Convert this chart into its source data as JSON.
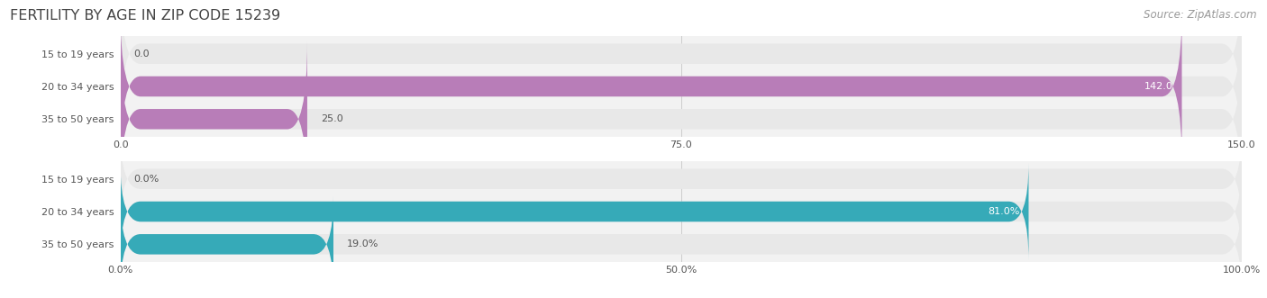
{
  "title": "FERTILITY BY AGE IN ZIP CODE 15239",
  "source": "Source: ZipAtlas.com",
  "top_chart": {
    "categories": [
      "15 to 19 years",
      "20 to 34 years",
      "35 to 50 years"
    ],
    "values": [
      0.0,
      142.0,
      25.0
    ],
    "max_value": 150.0,
    "tick_values": [
      0.0,
      75.0,
      150.0
    ],
    "tick_labels": [
      "0.0",
      "75.0",
      "150.0"
    ],
    "bar_color": "#b87db8",
    "bar_bg_color": "#e8e8e8"
  },
  "bottom_chart": {
    "categories": [
      "15 to 19 years",
      "20 to 34 years",
      "35 to 50 years"
    ],
    "values": [
      0.0,
      81.0,
      19.0
    ],
    "max_value": 100.0,
    "tick_values": [
      0.0,
      50.0,
      100.0
    ],
    "tick_labels": [
      "0.0%",
      "50.0%",
      "100.0%"
    ],
    "bar_color": "#36aab8",
    "bar_bg_color": "#e8e8e8"
  },
  "title_color": "#444444",
  "title_fontsize": 11.5,
  "source_color": "#999999",
  "source_fontsize": 8.5,
  "label_fontsize": 8,
  "tick_fontsize": 8,
  "category_fontsize": 8,
  "bar_height": 0.62,
  "bg_color": "#f2f2f2",
  "category_color": "#555555",
  "text_color_dark": "#555555",
  "text_color_light": "#ffffff"
}
